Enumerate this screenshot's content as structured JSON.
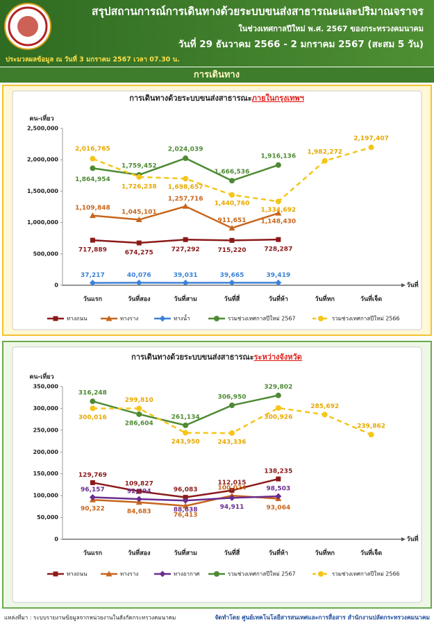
{
  "header": {
    "title": "สรุปสถานการณ์การเดินทางด้วยระบบขนส่งสาธารณะและปริมาณจราจร",
    "subtitle": "ในช่วงเทศกาลปีใหม่ พ.ศ. 2567 ของกระทรวงคมนาคม",
    "date_range": "วันที่ 29 ธันวาคม 2566 - 2 มกราคม 2567 (สะสม 5 วัน)",
    "data_note": "ประมวลผลข้อมูล ณ วันที่ 3 มกราคม 2567 เวลา 07.30 น."
  },
  "section_title": "การเดินทาง",
  "chart_data": [
    {
      "type": "line",
      "title": "การเดินทางด้วยระบบขนส่งสาธารณะ",
      "title_highlight": "ภายในกรุงเทพฯ",
      "y_label": "คน-เที่ยว",
      "x_label": "วันที่",
      "categories": [
        "วันแรก",
        "วันที่สอง",
        "วันที่สาม",
        "วันที่สี่",
        "วันที่ห้า",
        "วันที่หก",
        "วันที่เจ็ด"
      ],
      "series": [
        {
          "name": "ทางถนน",
          "color": "#8b1a1a",
          "marker": "square",
          "dash": false,
          "values": [
            717889,
            674275,
            727292,
            715220,
            728287,
            null,
            null
          ],
          "value_labels": [
            "717,889",
            "674,275",
            "727,292",
            "715,220",
            "728,287",
            null,
            null
          ]
        },
        {
          "name": "ทางราง",
          "color": "#c8651b",
          "marker": "triangle",
          "dash": false,
          "values": [
            1109848,
            1045101,
            1257716,
            911651,
            1148430,
            null,
            null
          ],
          "value_labels": [
            "1,109,848",
            "1,045,101",
            "1,257,716",
            "911,651",
            "1,148,430",
            null,
            null
          ]
        },
        {
          "name": "ทางน้ำ",
          "color": "#3b82d6",
          "marker": "diamond",
          "dash": false,
          "values": [
            37217,
            40076,
            39031,
            39665,
            39419,
            null,
            null
          ],
          "value_labels": [
            "37,217",
            "40,076",
            "39,031",
            "39,665",
            "39,419",
            null,
            null
          ]
        },
        {
          "name": "รวมช่วงเทศกาลปีใหม่ 2567",
          "color": "#4e8a34",
          "marker": "circle",
          "dash": false,
          "values": [
            1864954,
            1759452,
            2024039,
            1666536,
            1916136,
            null,
            null
          ],
          "value_labels": [
            "1,864,954",
            "1,759,452",
            "2,024,039",
            "1,666,536",
            "1,916,136",
            null,
            null
          ]
        },
        {
          "name": "รวมช่วงเทศกาลปีใหม่ 2566",
          "color": "#f5c518",
          "marker": "circle",
          "dash": true,
          "values": [
            2016765,
            1726238,
            1698657,
            1440760,
            1334692,
            1982272,
            2197407
          ],
          "value_labels": [
            "2,016,765",
            "1,726,238",
            "1,698,657",
            "1,440,760",
            "1,334,692",
            "1,982,272",
            "2,197,407"
          ]
        }
      ],
      "ylim": [
        0,
        2500000
      ],
      "yticks": [
        0,
        {
          "value": 500000,
          "label": "500,000"
        },
        {
          "value": 1000000,
          "label": "1,000,000"
        },
        {
          "value": 1500000,
          "label": "1,500,000"
        },
        {
          "value": 2000000,
          "label": "2,000,000"
        },
        {
          "value": 2500000,
          "label": "2,500,000"
        }
      ],
      "grid": false
    },
    {
      "type": "line",
      "title": "การเดินทางด้วยระบบขนส่งสาธารณะ",
      "title_highlight": "ระหว่างจังหวัด",
      "y_label": "คน-เที่ยว",
      "x_label": "วันที่",
      "categories": [
        "วันแรก",
        "วันที่สอง",
        "วันที่สาม",
        "วันที่สี่",
        "วันที่ห้า",
        "วันที่หก",
        "วันที่เจ็ด"
      ],
      "series": [
        {
          "name": "ทางถนน",
          "color": "#8b1a1a",
          "marker": "square",
          "dash": false,
          "values": [
            129769,
            109827,
            96083,
            112015,
            138235,
            null,
            null
          ],
          "value_labels": [
            "129,769",
            "109,827",
            "96,083",
            "112,015",
            "138,235",
            null,
            null
          ]
        },
        {
          "name": "ทางราง",
          "color": "#c8651b",
          "marker": "triangle",
          "dash": false,
          "values": [
            90322,
            84683,
            76413,
            100024,
            93064,
            null,
            null
          ],
          "value_labels": [
            "90,322",
            "84,683",
            "76,413",
            "100,024",
            "93,064",
            null,
            null
          ]
        },
        {
          "name": "ทางอากาศ",
          "color": "#6a2c8f",
          "marker": "diamond",
          "dash": false,
          "values": [
            96157,
            92094,
            88638,
            94911,
            98503,
            null,
            null
          ],
          "value_labels": [
            "96,157",
            "92,094",
            "88,638",
            "94,911",
            "98,503",
            null,
            null
          ]
        },
        {
          "name": "รวมช่วงเทศกาลปีใหม่ 2567",
          "color": "#4e8a34",
          "marker": "circle",
          "dash": false,
          "values": [
            316248,
            286604,
            261134,
            306950,
            329802,
            null,
            null
          ],
          "value_labels": [
            "316,248",
            "286,604",
            "261,134",
            "306,950",
            "329,802",
            null,
            null
          ]
        },
        {
          "name": "รวมช่วงเทศกาลปีใหม่ 2566",
          "color": "#f5c518",
          "marker": "circle",
          "dash": true,
          "values": [
            300016,
            299810,
            243950,
            243336,
            300926,
            285692,
            239862
          ],
          "value_labels": [
            "300,016",
            "299,810",
            "243,950",
            "243,336",
            "300,926",
            "285,692",
            "239,862"
          ]
        }
      ],
      "ylim": [
        0,
        350000
      ],
      "yticks": [
        0,
        {
          "value": 50000,
          "label": "50,000"
        },
        {
          "value": 100000,
          "label": "100,000"
        },
        {
          "value": 150000,
          "label": "150,000"
        },
        {
          "value": 200000,
          "label": "200,000"
        },
        {
          "value": 250000,
          "label": "250,000"
        },
        {
          "value": 300000,
          "label": "300,000"
        },
        {
          "value": 350000,
          "label": "350,000"
        }
      ],
      "grid": false
    }
  ],
  "footer": {
    "source": "แหล่งที่มา : ระบบรายงานข้อมูลจากหน่วยงานในสังกัดกระทรวงคมนาคม",
    "credit": "จัดทำโดย ศูนย์เทคโนโลยีสารสนเทศและการสื่อสาร สำนักงานปลัดกระทรวงคมนาคม"
  }
}
